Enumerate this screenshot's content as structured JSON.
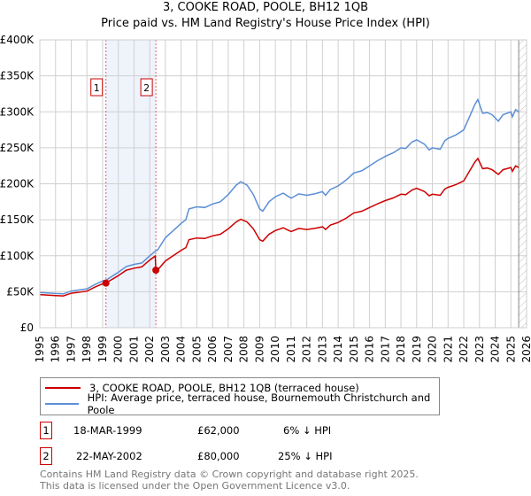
{
  "chart_data": {
    "type": "line",
    "title": "3, COOKE ROAD, POOLE, BH12 1QB",
    "subtitle": "Price paid vs. HM Land Registry's House Price Index (HPI)",
    "xlim": [
      1995,
      2026
    ],
    "ylim": [
      0,
      400000
    ],
    "y_ticks": [
      0,
      50000,
      100000,
      150000,
      200000,
      250000,
      300000,
      350000,
      400000
    ],
    "y_tick_labels": [
      "£0",
      "£50K",
      "£100K",
      "£150K",
      "£200K",
      "£250K",
      "£300K",
      "£350K",
      "£400K"
    ],
    "x_ticks": [
      1995,
      1996,
      1997,
      1998,
      1999,
      2000,
      2001,
      2002,
      2003,
      2004,
      2005,
      2006,
      2007,
      2008,
      2009,
      2010,
      2011,
      2012,
      2013,
      2014,
      2015,
      2016,
      2017,
      2018,
      2019,
      2020,
      2021,
      2022,
      2023,
      2024,
      2025,
      2026
    ],
    "x_tick_labels": [
      "1995",
      "1996",
      "1997",
      "1998",
      "1999",
      "2000",
      "2001",
      "2002",
      "2003",
      "2004",
      "2005",
      "2006",
      "2007",
      "2008",
      "2009",
      "2010",
      "2011",
      "2012",
      "2013",
      "2014",
      "2015",
      "2016",
      "2017",
      "2018",
      "2019",
      "2020",
      "2021",
      "2022",
      "2023",
      "2024",
      "2025",
      "2026"
    ],
    "grid": true,
    "forecast_hatch_from": 2025.5,
    "shaded_range": [
      1999.21,
      2002.39
    ],
    "series": [
      {
        "name": "3, COOKE ROAD, POOLE, BH12 1QB (terraced house)",
        "color": "#cc0000",
        "x": [
          1995,
          1996,
          1996.5,
          1997,
          1998,
          1998.5,
          1999,
          1999.21,
          1999.5,
          2000,
          2000.5,
          2001,
          2001.5,
          2002,
          2002.35,
          2002.39,
          2002.5,
          2003,
          2003.5,
          2004,
          2004.3,
          2004.5,
          2005,
          2005.5,
          2006,
          2006.5,
          2007,
          2007.5,
          2007.8,
          2008.2,
          2008.6,
          2009,
          2009.2,
          2009.6,
          2010,
          2010.5,
          2011,
          2011.5,
          2012,
          2012.5,
          2013,
          2013.2,
          2013.5,
          2014,
          2014.5,
          2015,
          2015.5,
          2016,
          2016.5,
          2017,
          2017.5,
          2018,
          2018.3,
          2018.7,
          2019,
          2019.5,
          2019.8,
          2020,
          2020.5,
          2020.8,
          2021,
          2021.5,
          2022,
          2022.3,
          2022.7,
          2022.9,
          2023.2,
          2023.5,
          2023.8,
          2024.2,
          2024.5,
          2025,
          2025.1,
          2025.3,
          2025.5
        ],
        "values": [
          46000,
          44700,
          44200,
          47900,
          50800,
          56400,
          61100,
          62000,
          65800,
          72400,
          79900,
          82700,
          84600,
          94000,
          99600,
          80000,
          80100,
          92800,
          100200,
          107600,
          111300,
          122400,
          124700,
          123900,
          127600,
          129900,
          137300,
          146900,
          150600,
          146900,
          137300,
          122400,
          120200,
          129900,
          135000,
          138800,
          133600,
          138000,
          136500,
          138000,
          140200,
          136500,
          142500,
          146200,
          152100,
          159500,
          161800,
          167000,
          172100,
          176600,
          180300,
          185500,
          184800,
          191400,
          193700,
          189200,
          183300,
          185500,
          184000,
          192900,
          195100,
          198900,
          204100,
          215200,
          230000,
          235200,
          221100,
          221900,
          219600,
          213000,
          219600,
          222600,
          217400,
          224800,
          222600
        ]
      },
      {
        "name": "HPI: Average price, terraced house, Bournemouth Christchurch and Poole",
        "color": "#5b8fd6",
        "x": [
          1995,
          1996,
          1996.5,
          1997,
          1998,
          1998.5,
          1999,
          1999.21,
          1999.5,
          2000,
          2000.5,
          2001,
          2001.5,
          2002,
          2002.39,
          2002.5,
          2003,
          2003.5,
          2004,
          2004.3,
          2004.5,
          2005,
          2005.5,
          2006,
          2006.5,
          2007,
          2007.5,
          2007.8,
          2008.2,
          2008.6,
          2009,
          2009.2,
          2009.6,
          2010,
          2010.5,
          2011,
          2011.5,
          2012,
          2012.5,
          2013,
          2013.2,
          2013.5,
          2014,
          2014.5,
          2015,
          2015.5,
          2016,
          2016.5,
          2017,
          2017.5,
          2018,
          2018.3,
          2018.7,
          2019,
          2019.5,
          2019.8,
          2020,
          2020.5,
          2020.8,
          2021,
          2021.5,
          2022,
          2022.3,
          2022.7,
          2022.9,
          2023.2,
          2023.5,
          2023.8,
          2024.2,
          2024.5,
          2025,
          2025.1,
          2025.3,
          2025.5
        ],
        "values": [
          49000,
          47500,
          47000,
          51000,
          54000,
          60000,
          65000,
          66000,
          70000,
          77000,
          85000,
          88000,
          90000,
          100000,
          107000,
          108000,
          125000,
          135000,
          145000,
          150000,
          165000,
          168000,
          167000,
          172000,
          175000,
          185000,
          198000,
          203000,
          198000,
          185000,
          165000,
          162000,
          175000,
          182000,
          187000,
          180000,
          186000,
          184000,
          186000,
          189000,
          184000,
          192000,
          197000,
          205000,
          215000,
          218000,
          225000,
          232000,
          238000,
          243000,
          250000,
          249000,
          258000,
          261000,
          255000,
          247000,
          250000,
          248000,
          260000,
          263000,
          268000,
          275000,
          290000,
          310000,
          317000,
          298000,
          299000,
          296000,
          287000,
          296000,
          300000,
          293000,
          303000,
          300000
        ]
      }
    ],
    "sales": [
      {
        "label": "1",
        "x": 1999.21,
        "value": 62000,
        "date": "18-MAR-1999",
        "price": "£62,000",
        "hpi_diff": "6% ↓ HPI"
      },
      {
        "label": "2",
        "x": 2002.39,
        "value": 80000,
        "date": "22-MAY-2002",
        "price": "£80,000",
        "hpi_diff": "25% ↓ HPI"
      }
    ]
  },
  "footer": {
    "line1": "Contains HM Land Registry data © Crown copyright and database right 2025.",
    "line2": "This data is licensed under the Open Government Licence v3.0."
  }
}
